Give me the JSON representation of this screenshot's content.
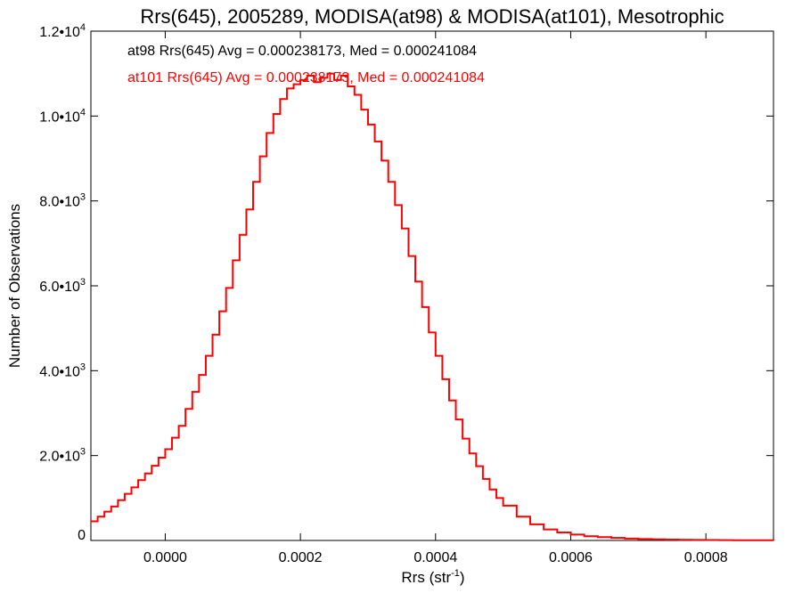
{
  "chart_data": {
    "type": "line",
    "title": "Rrs(645), 2005289, MODISA(at98) & MODISA(at101), Mesotrophic",
    "xlabel": "Rrs (str",
    "xlabel_sup": "-1",
    "xlabel_suffix": ")",
    "ylabel": "Number of Observations",
    "xlim": [
      -0.00011,
      0.0009
    ],
    "ylim": [
      0,
      12000
    ],
    "x_ticks": [
      {
        "value": 0.0,
        "label": "0.0000"
      },
      {
        "value": 0.0002,
        "label": "0.0002"
      },
      {
        "value": 0.0004,
        "label": "0.0004"
      },
      {
        "value": 0.0006,
        "label": "0.0006"
      },
      {
        "value": 0.0008,
        "label": "0.0008"
      }
    ],
    "y_ticks": [
      {
        "value": 0,
        "mantissa": "0",
        "exp": ""
      },
      {
        "value": 2000,
        "mantissa": "2.0•10",
        "exp": "3"
      },
      {
        "value": 4000,
        "mantissa": "4.0•10",
        "exp": "3"
      },
      {
        "value": 6000,
        "mantissa": "6.0•10",
        "exp": "3"
      },
      {
        "value": 8000,
        "mantissa": "8.0•10",
        "exp": "3"
      },
      {
        "value": 10000,
        "mantissa": "1.0•10",
        "exp": "4"
      },
      {
        "value": 12000,
        "mantissa": "1.2•10",
        "exp": "4"
      }
    ],
    "legend_position": "top-left",
    "annotations": [
      {
        "text": "at98 Rrs(645) Avg = 0.000238173, Med = 0.000241084",
        "color": "#000000"
      },
      {
        "text": "at101 Rrs(645) Avg = 0.000238173, Med = 0.000241084",
        "color": "#ff0000"
      }
    ],
    "grid": false,
    "series": [
      {
        "color": "#ff0000",
        "x": [
          -0.00011,
          -0.0001,
          -9e-05,
          -8e-05,
          -7e-05,
          -6e-05,
          -5e-05,
          -4e-05,
          -3e-05,
          -2e-05,
          -1e-05,
          0.0,
          1e-05,
          2e-05,
          3e-05,
          4e-05,
          5e-05,
          6e-05,
          7e-05,
          8e-05,
          9e-05,
          0.0001,
          0.00011,
          0.00012,
          0.00013,
          0.00014,
          0.00015,
          0.00016,
          0.00017,
          0.00018,
          0.00019,
          0.0002,
          0.00021,
          0.00022,
          0.00023,
          0.00024,
          0.00025,
          0.00026,
          0.00027,
          0.00028,
          0.00029,
          0.0003,
          0.00031,
          0.00032,
          0.00033,
          0.00034,
          0.00035,
          0.00036,
          0.00037,
          0.00038,
          0.00039,
          0.0004,
          0.00041,
          0.00042,
          0.00043,
          0.00044,
          0.00045,
          0.00046,
          0.00047,
          0.00048,
          0.00049,
          0.0005,
          0.00052,
          0.00054,
          0.00056,
          0.00058,
          0.0006,
          0.00062,
          0.00064,
          0.00066,
          0.00068,
          0.0007,
          0.00072,
          0.00074,
          0.00076,
          0.00078,
          0.0008,
          0.00082,
          0.00084,
          0.00086,
          0.00088,
          0.0009
        ],
        "y": [
          450,
          560,
          680,
          800,
          950,
          1100,
          1250,
          1420,
          1580,
          1760,
          1950,
          2150,
          2420,
          2700,
          3100,
          3500,
          3900,
          4350,
          4850,
          5400,
          5950,
          6600,
          7200,
          7800,
          8450,
          9050,
          9600,
          10050,
          10400,
          10650,
          10750,
          10850,
          10950,
          10800,
          10900,
          11000,
          10850,
          10950,
          10700,
          10500,
          10150,
          9800,
          9400,
          8950,
          8450,
          7900,
          7350,
          6700,
          6100,
          5500,
          4900,
          4350,
          3800,
          3300,
          2850,
          2400,
          2050,
          1750,
          1450,
          1200,
          1000,
          820,
          560,
          380,
          260,
          190,
          140,
          100,
          80,
          60,
          45,
          35,
          25,
          20,
          15,
          12,
          10,
          8,
          6,
          5,
          4,
          3
        ]
      }
    ]
  }
}
